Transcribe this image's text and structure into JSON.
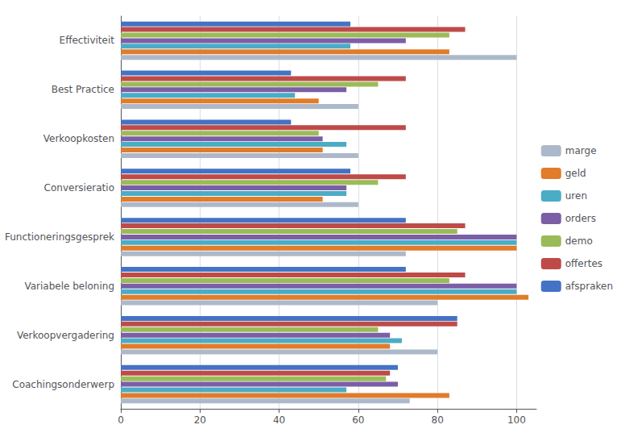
{
  "chart_data": {
    "type": "bar",
    "orientation": "horizontal",
    "categories": [
      "Coachingsonderwerp",
      "Verkoopvergadering",
      "Variabele beloning",
      "Functioneringsgesprek",
      "Conversieratio",
      "Verkoopkosten",
      "Best Practice",
      "Effectiviteit"
    ],
    "series": [
      {
        "name": "marge",
        "color": "#adb9ca",
        "values": [
          73,
          80,
          80,
          72,
          60,
          60,
          60,
          100
        ]
      },
      {
        "name": "geld",
        "color": "#e07c2a",
        "values": [
          83,
          68,
          103,
          100,
          51,
          51,
          50,
          83
        ]
      },
      {
        "name": "uren",
        "color": "#4bacc6",
        "values": [
          57,
          71,
          100,
          100,
          57,
          57,
          44,
          58
        ]
      },
      {
        "name": "orders",
        "color": "#7c5ea6",
        "values": [
          70,
          68,
          100,
          100,
          57,
          51,
          57,
          72
        ]
      },
      {
        "name": "demo",
        "color": "#9bbb59",
        "values": [
          67,
          65,
          83,
          85,
          65,
          50,
          65,
          83
        ]
      },
      {
        "name": "offertes",
        "color": "#be4b48",
        "values": [
          68,
          85,
          87,
          87,
          72,
          72,
          72,
          87
        ]
      },
      {
        "name": "afspraken",
        "color": "#4472c4",
        "values": [
          70,
          85,
          72,
          72,
          58,
          43,
          43,
          58
        ]
      }
    ],
    "xlim": [
      0,
      105
    ],
    "xticks": [
      0,
      20,
      40,
      60,
      80,
      100
    ],
    "grid": true,
    "legend": "right"
  }
}
